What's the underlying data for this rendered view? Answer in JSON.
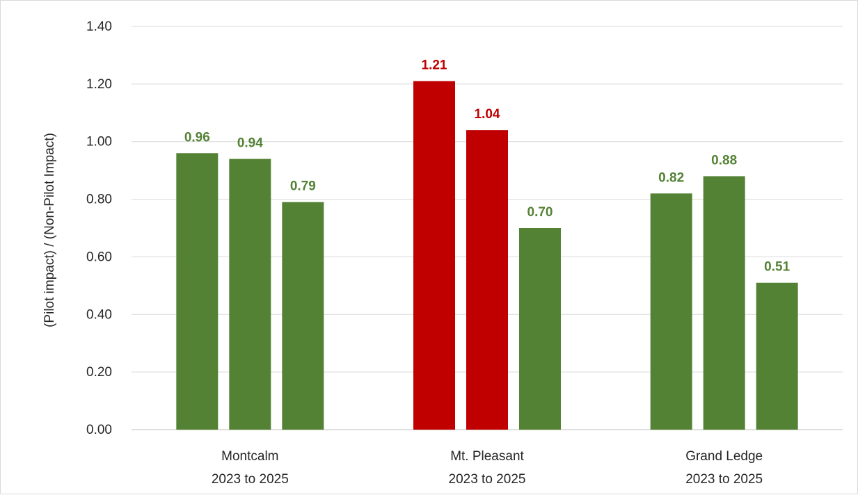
{
  "chart_data": {
    "type": "bar",
    "title": "",
    "xlabel": "",
    "ylabel": "(Pilot impact) / (Non-Pilot Impact)",
    "ylim": [
      0,
      1.4
    ],
    "yticks": [
      "0.00",
      "0.20",
      "0.40",
      "0.60",
      "0.80",
      "1.00",
      "1.20",
      "1.40"
    ],
    "grid": true,
    "legend": "none",
    "colors": {
      "below_one": "#548235",
      "above_one": "#c00000"
    },
    "categories": [
      {
        "name": "Montcalm",
        "period": "2023 to 2025",
        "values": [
          0.96,
          0.94,
          0.79
        ],
        "labels": [
          "0.96",
          "0.94",
          "0.79"
        ]
      },
      {
        "name": "Mt. Pleasant",
        "period": "2023 to 2025",
        "values": [
          1.21,
          1.04,
          0.7
        ],
        "labels": [
          "1.21",
          "1.04",
          "0.70"
        ]
      },
      {
        "name": "Grand Ledge",
        "period": "2023 to 2025",
        "values": [
          0.82,
          0.88,
          0.51
        ],
        "labels": [
          "0.82",
          "0.88",
          "0.51"
        ]
      }
    ]
  }
}
